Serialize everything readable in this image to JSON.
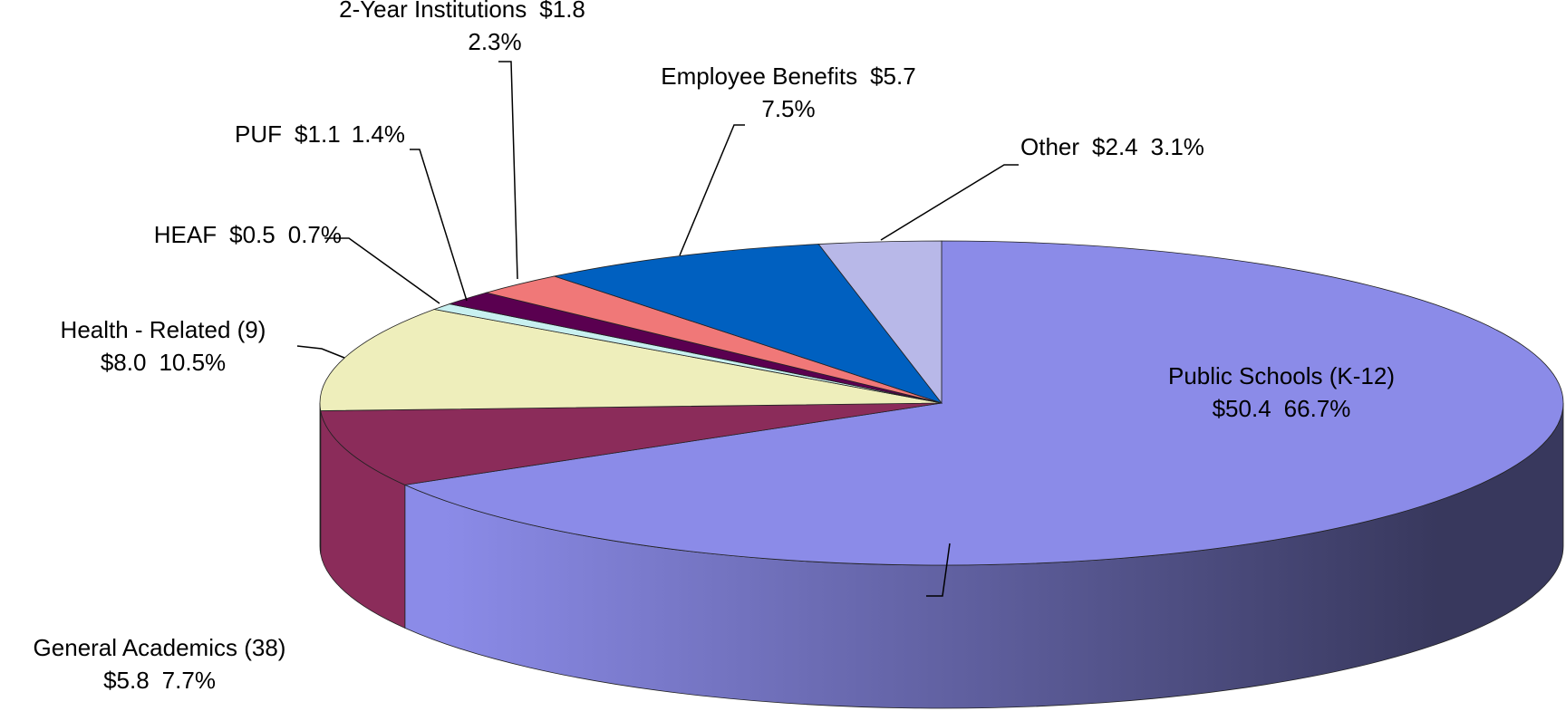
{
  "chart_data": {
    "type": "pie3d",
    "categories": [
      "Public Schools (K-12)",
      "General Academics (38)",
      "Health - Related (9)",
      "HEAF",
      "PUF",
      "2-Year Institutions",
      "Employee Benefits",
      "Other"
    ],
    "values": [
      50.4,
      5.8,
      8.0,
      0.5,
      1.1,
      1.8,
      5.7,
      2.4
    ],
    "value_labels": [
      "$50.4",
      "$5.8",
      "$8.0",
      "$0.5",
      "$1.1",
      "$1.8",
      "$5.7",
      "$2.4"
    ],
    "percents": [
      66.7,
      7.7,
      10.5,
      0.7,
      1.4,
      2.3,
      7.5,
      3.1
    ],
    "percent_labels": [
      "66.7%",
      "7.7%",
      "10.5%",
      "0.7%",
      "1.4%",
      "2.3%",
      "7.5%",
      "3.1%"
    ],
    "colors": [
      "#8b8be8",
      "#8b2c5a",
      "#eeeebb",
      "#c8f0f0",
      "#5a0050",
      "#f07878",
      "#0060c0",
      "#b8b8e8"
    ]
  }
}
